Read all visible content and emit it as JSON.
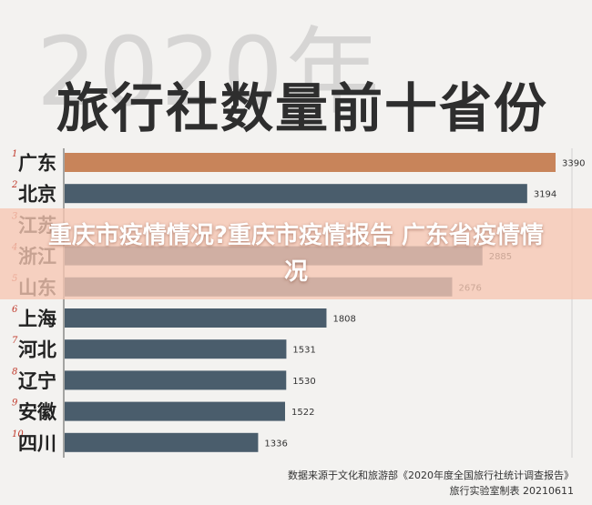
{
  "header": {
    "year_text": "2020年",
    "title": "旅行社数量前十省份"
  },
  "overlay": {
    "headline": "重庆市疫情情况?重庆市疫情报告 广东省疫情情况"
  },
  "footer": {
    "source": "数据来源于文化和旅游部《2020年度全国旅行社统计调查报告》",
    "credit": "旅行实验室制表 20210611"
  },
  "colors": {
    "highlight_bar": "#c8845a",
    "bar": "#4a5d6c",
    "rank_number": "#c0392b"
  },
  "chart_data": {
    "type": "bar",
    "orientation": "horizontal",
    "title": "旅行社数量前十省份",
    "ranks": [
      "1",
      "2",
      "3",
      "4",
      "5",
      "6",
      "7",
      "8",
      "9",
      "10"
    ],
    "categories": [
      "广东",
      "北京",
      "江苏",
      "浙江",
      "山东",
      "上海",
      "河北",
      "辽宁",
      "安徽",
      "四川"
    ],
    "values": [
      3390,
      3194,
      null,
      2885,
      2676,
      1808,
      1531,
      1530,
      1522,
      1336
    ],
    "highlight_index": 0,
    "xlim": [
      0,
      3390
    ]
  }
}
